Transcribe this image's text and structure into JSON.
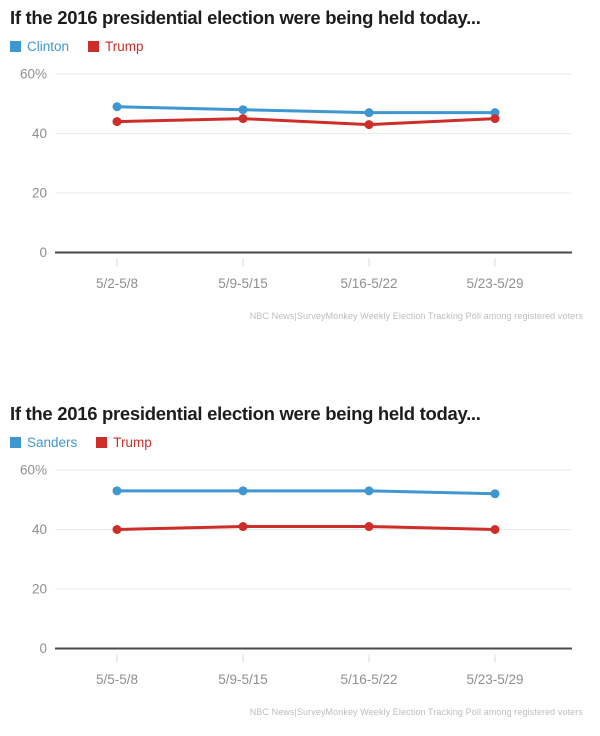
{
  "page": {
    "background": "#ffffff",
    "axis_color": "#4a4a4a",
    "grid_color": "#ebebeb",
    "tick_label_color": "#8f8f8f",
    "source_color": "#bdbdbd"
  },
  "chart_data": [
    {
      "type": "line",
      "title": "If the 2016 presidential election were being held today...",
      "categories": [
        "5/2-5/8",
        "5/9-5/15",
        "5/16-5/22",
        "5/23-5/29"
      ],
      "series": [
        {
          "name": "Clinton",
          "color": "#3e97d0",
          "values": [
            49,
            48,
            47,
            47
          ]
        },
        {
          "name": "Trump",
          "color": "#cd2e29",
          "values": [
            44,
            45,
            43,
            45
          ]
        }
      ],
      "xlabel": "",
      "ylabel": "",
      "ylim": [
        0,
        60
      ],
      "yticks": [
        60,
        40,
        20,
        0
      ],
      "ytick_labels": [
        "60%",
        "40",
        "20",
        "0"
      ],
      "grid": "horizontal",
      "legend_position": "top-left",
      "source": "NBC News|SurveyMonkey Weekly Election Tracking Poll among registered voters"
    },
    {
      "type": "line",
      "title": "If the 2016 presidential election were being held today...",
      "categories": [
        "5/5-5/8",
        "5/9-5/15",
        "5/16-5/22",
        "5/23-5/29"
      ],
      "series": [
        {
          "name": "Sanders",
          "color": "#3e97d0",
          "values": [
            53,
            53,
            53,
            52
          ]
        },
        {
          "name": "Trump",
          "color": "#cd2e29",
          "values": [
            40,
            41,
            41,
            40
          ]
        }
      ],
      "xlabel": "",
      "ylabel": "",
      "ylim": [
        0,
        60
      ],
      "yticks": [
        60,
        40,
        20,
        0
      ],
      "ytick_labels": [
        "60%",
        "40",
        "20",
        "0"
      ],
      "grid": "horizontal",
      "legend_position": "top-left",
      "source": "NBC News|SurveyMonkey Weekly Election Tracking Poll among registered voters"
    }
  ]
}
